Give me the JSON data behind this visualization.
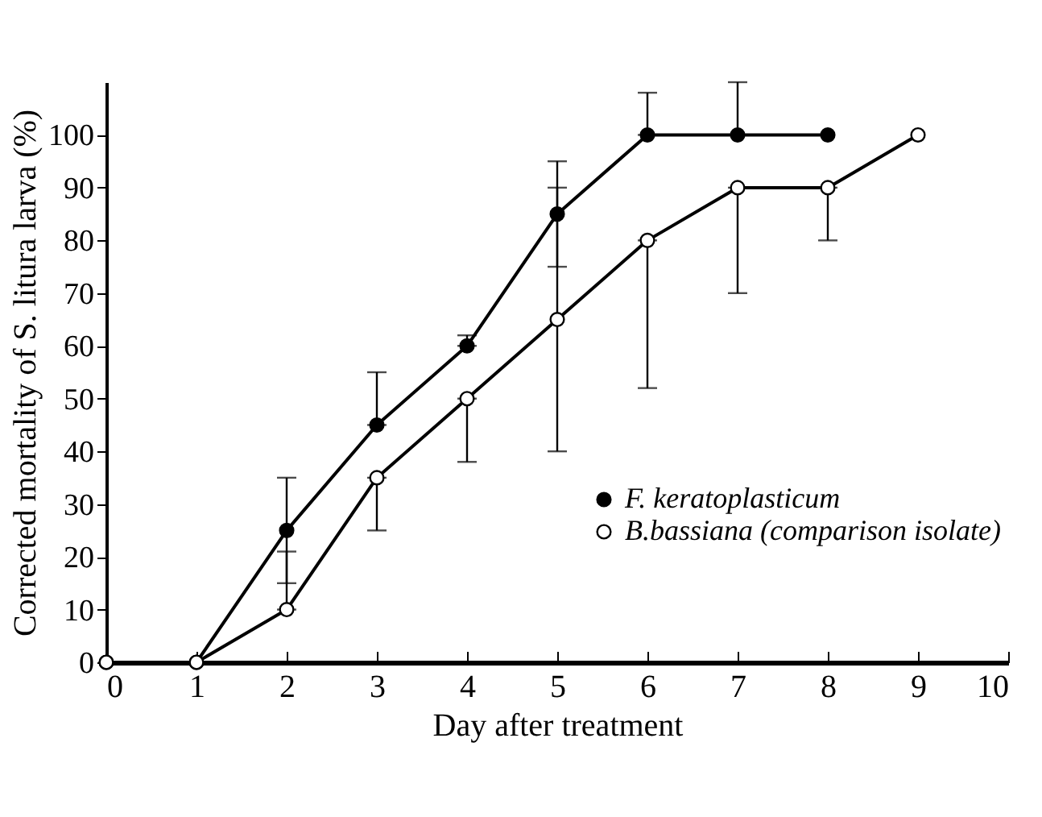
{
  "chart_data": {
    "type": "line",
    "xlabel": "Day after treatment",
    "ylabel": "Corrected mortality of S. litura larva (%)",
    "xlim": [
      0,
      10
    ],
    "xticks": [
      0,
      1,
      2,
      3,
      4,
      5,
      6,
      7,
      8,
      9,
      10
    ],
    "ylim": [
      0,
      110
    ],
    "yticks": [
      0,
      10,
      20,
      30,
      40,
      50,
      60,
      70,
      80,
      90,
      100
    ],
    "grid": false,
    "legend": "bottom right",
    "marker": "circle",
    "line_style": "solid",
    "series": [
      {
        "name": "F. keratoplasticum",
        "color": "#000000",
        "x": [
          0,
          1,
          2,
          3,
          4,
          5,
          6,
          7,
          8
        ],
        "values": [
          0,
          0,
          25,
          45,
          60,
          85,
          100,
          100,
          100
        ],
        "errors": [
          null,
          null,
          [
            15,
            35
          ],
          [
            45,
            55
          ],
          [
            60,
            62
          ],
          [
            75,
            95
          ],
          [
            100,
            108
          ],
          [
            100,
            110
          ],
          null
        ]
      },
      {
        "name": "B.bassiana (comparison isolate)",
        "color": "#ffffff",
        "x": [
          0,
          1,
          2,
          3,
          4,
          5,
          6,
          7,
          8,
          9
        ],
        "values": [
          0,
          0,
          10,
          35,
          50,
          65,
          80,
          90,
          90,
          100
        ],
        "errors": [
          null,
          null,
          [
            10,
            21
          ],
          [
            25,
            35
          ],
          [
            38,
            50
          ],
          [
            40,
            90
          ],
          [
            52,
            80
          ],
          [
            70,
            90
          ],
          [
            80,
            90
          ],
          null
        ]
      }
    ]
  }
}
